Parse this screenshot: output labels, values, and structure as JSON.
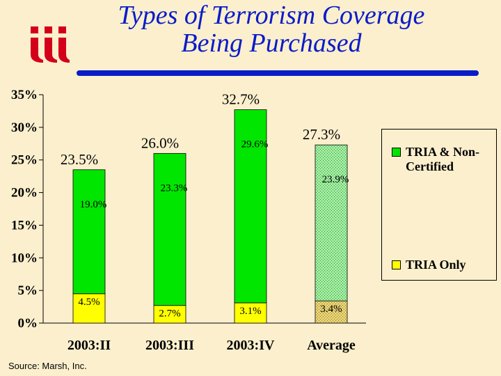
{
  "title_line1": "Types of Terrorism Coverage",
  "title_line2": "Being Purchased",
  "source": "Source: Marsh, Inc.",
  "colors": {
    "title": "#0a1cc8",
    "green": "#00e600",
    "yellow": "#ffff00",
    "logo": "#d4001a"
  },
  "chart_data": {
    "type": "bar",
    "stacked": true,
    "categories": [
      "2003:II",
      "2003:III",
      "2003:IV",
      "Average"
    ],
    "series": [
      {
        "name": "TRIA Only",
        "values": [
          4.5,
          2.7,
          3.1,
          3.4
        ],
        "labels": [
          "4.5%",
          "2.7%",
          "3.1%",
          "3.4%"
        ]
      },
      {
        "name": "TRIA & Non-Certified",
        "values": [
          19.0,
          23.3,
          29.6,
          23.9
        ],
        "labels": [
          "19.0%",
          "23.3%",
          "29.6%",
          "23.9%"
        ]
      }
    ],
    "totals": [
      23.5,
      26.0,
      32.7,
      27.3
    ],
    "total_labels": [
      "23.5%",
      "26.0%",
      "32.7%",
      "27.3%"
    ],
    "ylim": [
      0,
      35
    ],
    "yticks": [
      "0%",
      "5%",
      "10%",
      "15%",
      "20%",
      "25%",
      "30%",
      "35%"
    ],
    "legend_position": "right",
    "hatched_last_category": true
  }
}
